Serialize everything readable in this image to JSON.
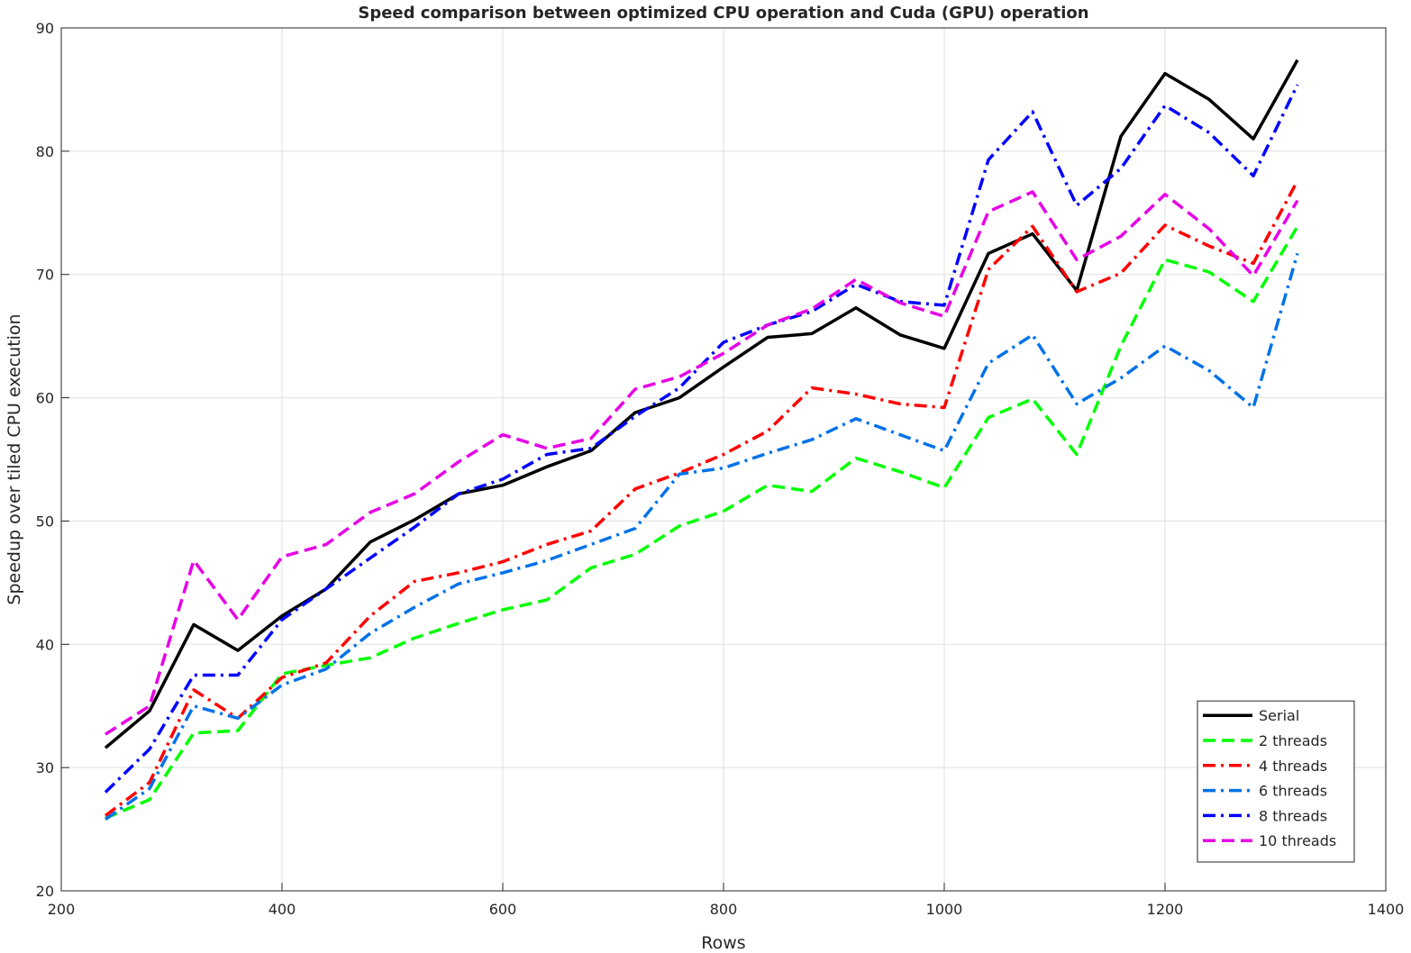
{
  "chart_data": {
    "type": "line",
    "title": "Speed comparison between optimized CPU operation and Cuda (GPU) operation",
    "xlabel": "Rows",
    "ylabel": "Speedup over tiled CPU execution",
    "xlim": [
      200,
      1400
    ],
    "ylim": [
      20,
      90
    ],
    "xticks": [
      200,
      400,
      600,
      800,
      1000,
      1200,
      1400
    ],
    "yticks": [
      20,
      30,
      40,
      50,
      60,
      70,
      80,
      90
    ],
    "grid": true,
    "legend_position": "bottom-right",
    "x": [
      240,
      280,
      320,
      360,
      400,
      440,
      480,
      520,
      560,
      600,
      640,
      680,
      720,
      760,
      800,
      840,
      880,
      920,
      960,
      1000,
      1040,
      1080,
      1120,
      1160,
      1200,
      1240,
      1280,
      1320
    ],
    "series": [
      {
        "name": "Serial",
        "color": "#000000",
        "dash": "solid",
        "values": [
          31.6,
          34.6,
          41.6,
          39.5,
          42.3,
          44.5,
          48.3,
          50.1,
          52.2,
          52.9,
          54.4,
          55.7,
          58.8,
          60.0,
          62.5,
          64.9,
          65.2,
          67.3,
          65.1,
          64.0,
          71.7,
          73.3,
          68.7,
          81.2,
          86.3,
          84.2,
          81.0,
          87.4
        ]
      },
      {
        "name": "2 threads",
        "color": "#00ff00",
        "dash": "dashed",
        "values": [
          25.9,
          27.4,
          32.8,
          33.0,
          37.6,
          38.3,
          38.9,
          40.5,
          41.7,
          42.8,
          43.6,
          46.2,
          47.3,
          49.6,
          50.8,
          52.9,
          52.4,
          55.1,
          54.0,
          52.7,
          58.4,
          59.9,
          55.4,
          64.2,
          71.2,
          70.2,
          67.8,
          73.9
        ]
      },
      {
        "name": "4 threads",
        "color": "#ff0000",
        "dash": "dashdot",
        "values": [
          26.1,
          28.8,
          36.3,
          34.0,
          37.3,
          38.5,
          42.3,
          45.1,
          45.8,
          46.7,
          48.1,
          49.2,
          52.6,
          53.9,
          55.4,
          57.3,
          60.8,
          60.3,
          59.5,
          59.2,
          70.4,
          73.9,
          68.6,
          70.1,
          74.0,
          72.3,
          70.9,
          77.6
        ]
      },
      {
        "name": "6 threads",
        "color": "#0072e8",
        "dash": "dashdot",
        "values": [
          25.8,
          28.3,
          35.0,
          34.0,
          36.7,
          38.0,
          40.9,
          43.0,
          44.9,
          45.8,
          46.8,
          48.1,
          49.4,
          53.8,
          54.3,
          55.5,
          56.6,
          58.3,
          57.0,
          55.7,
          62.8,
          65.1,
          59.5,
          61.6,
          64.2,
          62.2,
          59.2,
          71.7
        ]
      },
      {
        "name": "8 threads",
        "color": "#0000ff",
        "dash": "dashdot",
        "values": [
          28.0,
          31.5,
          37.5,
          37.5,
          42.0,
          44.5,
          47.0,
          49.5,
          52.2,
          53.4,
          55.4,
          55.9,
          58.5,
          60.8,
          64.5,
          65.9,
          67.0,
          69.2,
          67.8,
          67.5,
          79.3,
          83.2,
          75.6,
          78.6,
          83.7,
          81.5,
          78.0,
          85.4
        ]
      },
      {
        "name": "10 threads",
        "color": "#e600e6",
        "dash": "dashed",
        "values": [
          32.7,
          35.0,
          46.8,
          42.0,
          47.1,
          48.1,
          50.7,
          52.2,
          54.8,
          57.0,
          55.9,
          56.7,
          60.7,
          61.7,
          63.6,
          65.9,
          67.2,
          69.6,
          67.7,
          66.6,
          75.1,
          76.7,
          71.2,
          73.1,
          76.5,
          73.7,
          69.9,
          76.0
        ]
      }
    ]
  }
}
